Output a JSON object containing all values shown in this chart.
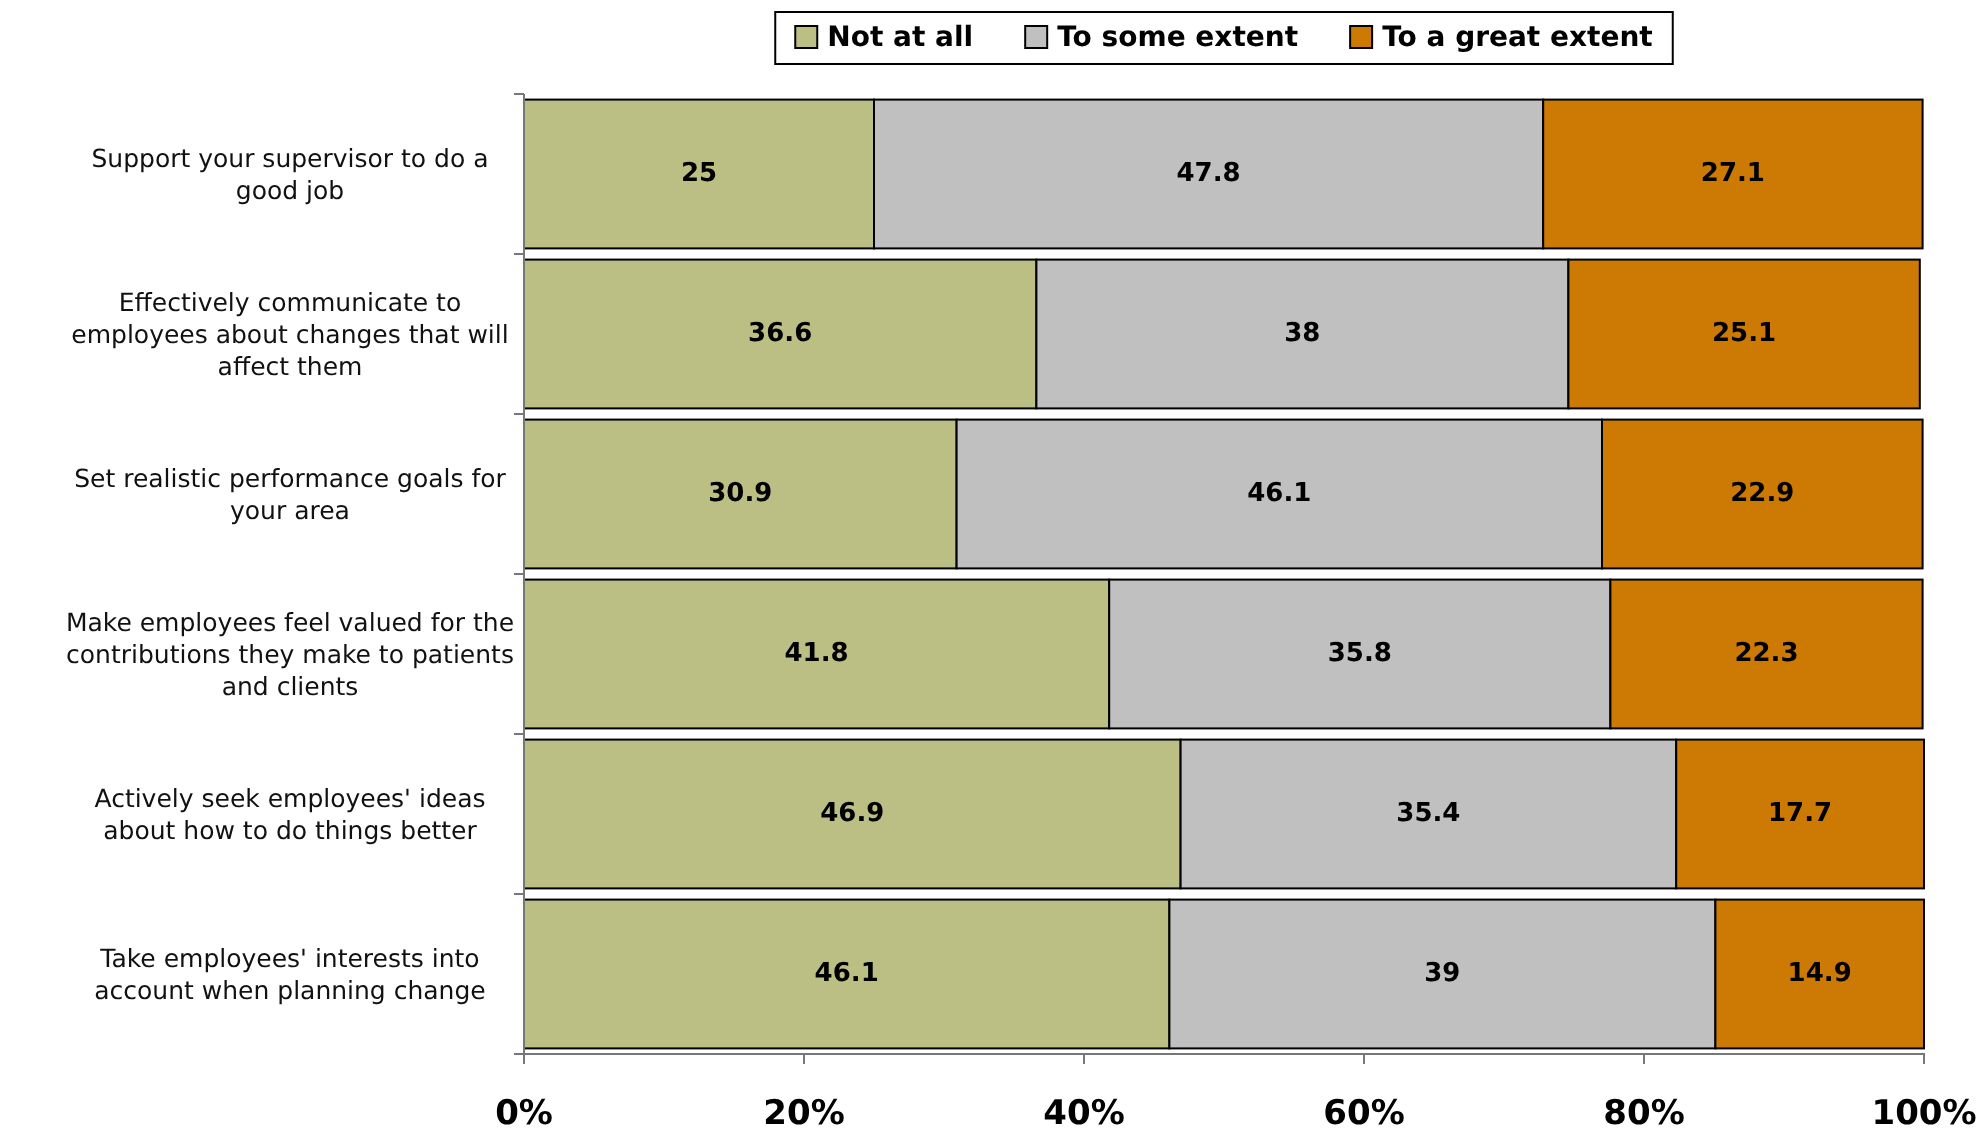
{
  "chart_data": {
    "type": "bar",
    "orientation": "horizontal",
    "stacked": true,
    "categories": [
      "Support your supervisor to do a good job",
      "Effectively communicate to employees about changes that will affect them",
      "Set realistic performance goals for your area",
      "Make employees feel valued for the contributions they make to patients and clients",
      "Actively seek employees' ideas about how to do things better",
      "Take employees' interests into account when planning change"
    ],
    "series": [
      {
        "name": "Not at all",
        "color": "#bcbf84",
        "values": [
          25,
          36.6,
          30.9,
          41.8,
          46.9,
          46.1
        ]
      },
      {
        "name": "To some extent",
        "color": "#c0c0c0",
        "values": [
          47.8,
          38,
          46.1,
          35.8,
          35.4,
          39
        ]
      },
      {
        "name": "To a great extent",
        "color": "#cc7a04",
        "values": [
          27.1,
          25.1,
          22.9,
          22.3,
          17.7,
          14.9
        ]
      }
    ],
    "xlim": [
      0,
      100
    ],
    "xticks": [
      {
        "value": 0,
        "label": "0%"
      },
      {
        "value": 20,
        "label": "20%"
      },
      {
        "value": 40,
        "label": "40%"
      },
      {
        "value": 60,
        "label": "60%"
      },
      {
        "value": 80,
        "label": "80%"
      },
      {
        "value": 100,
        "label": "100%"
      }
    ],
    "data_labels": true,
    "legend": "top",
    "grid": false
  }
}
